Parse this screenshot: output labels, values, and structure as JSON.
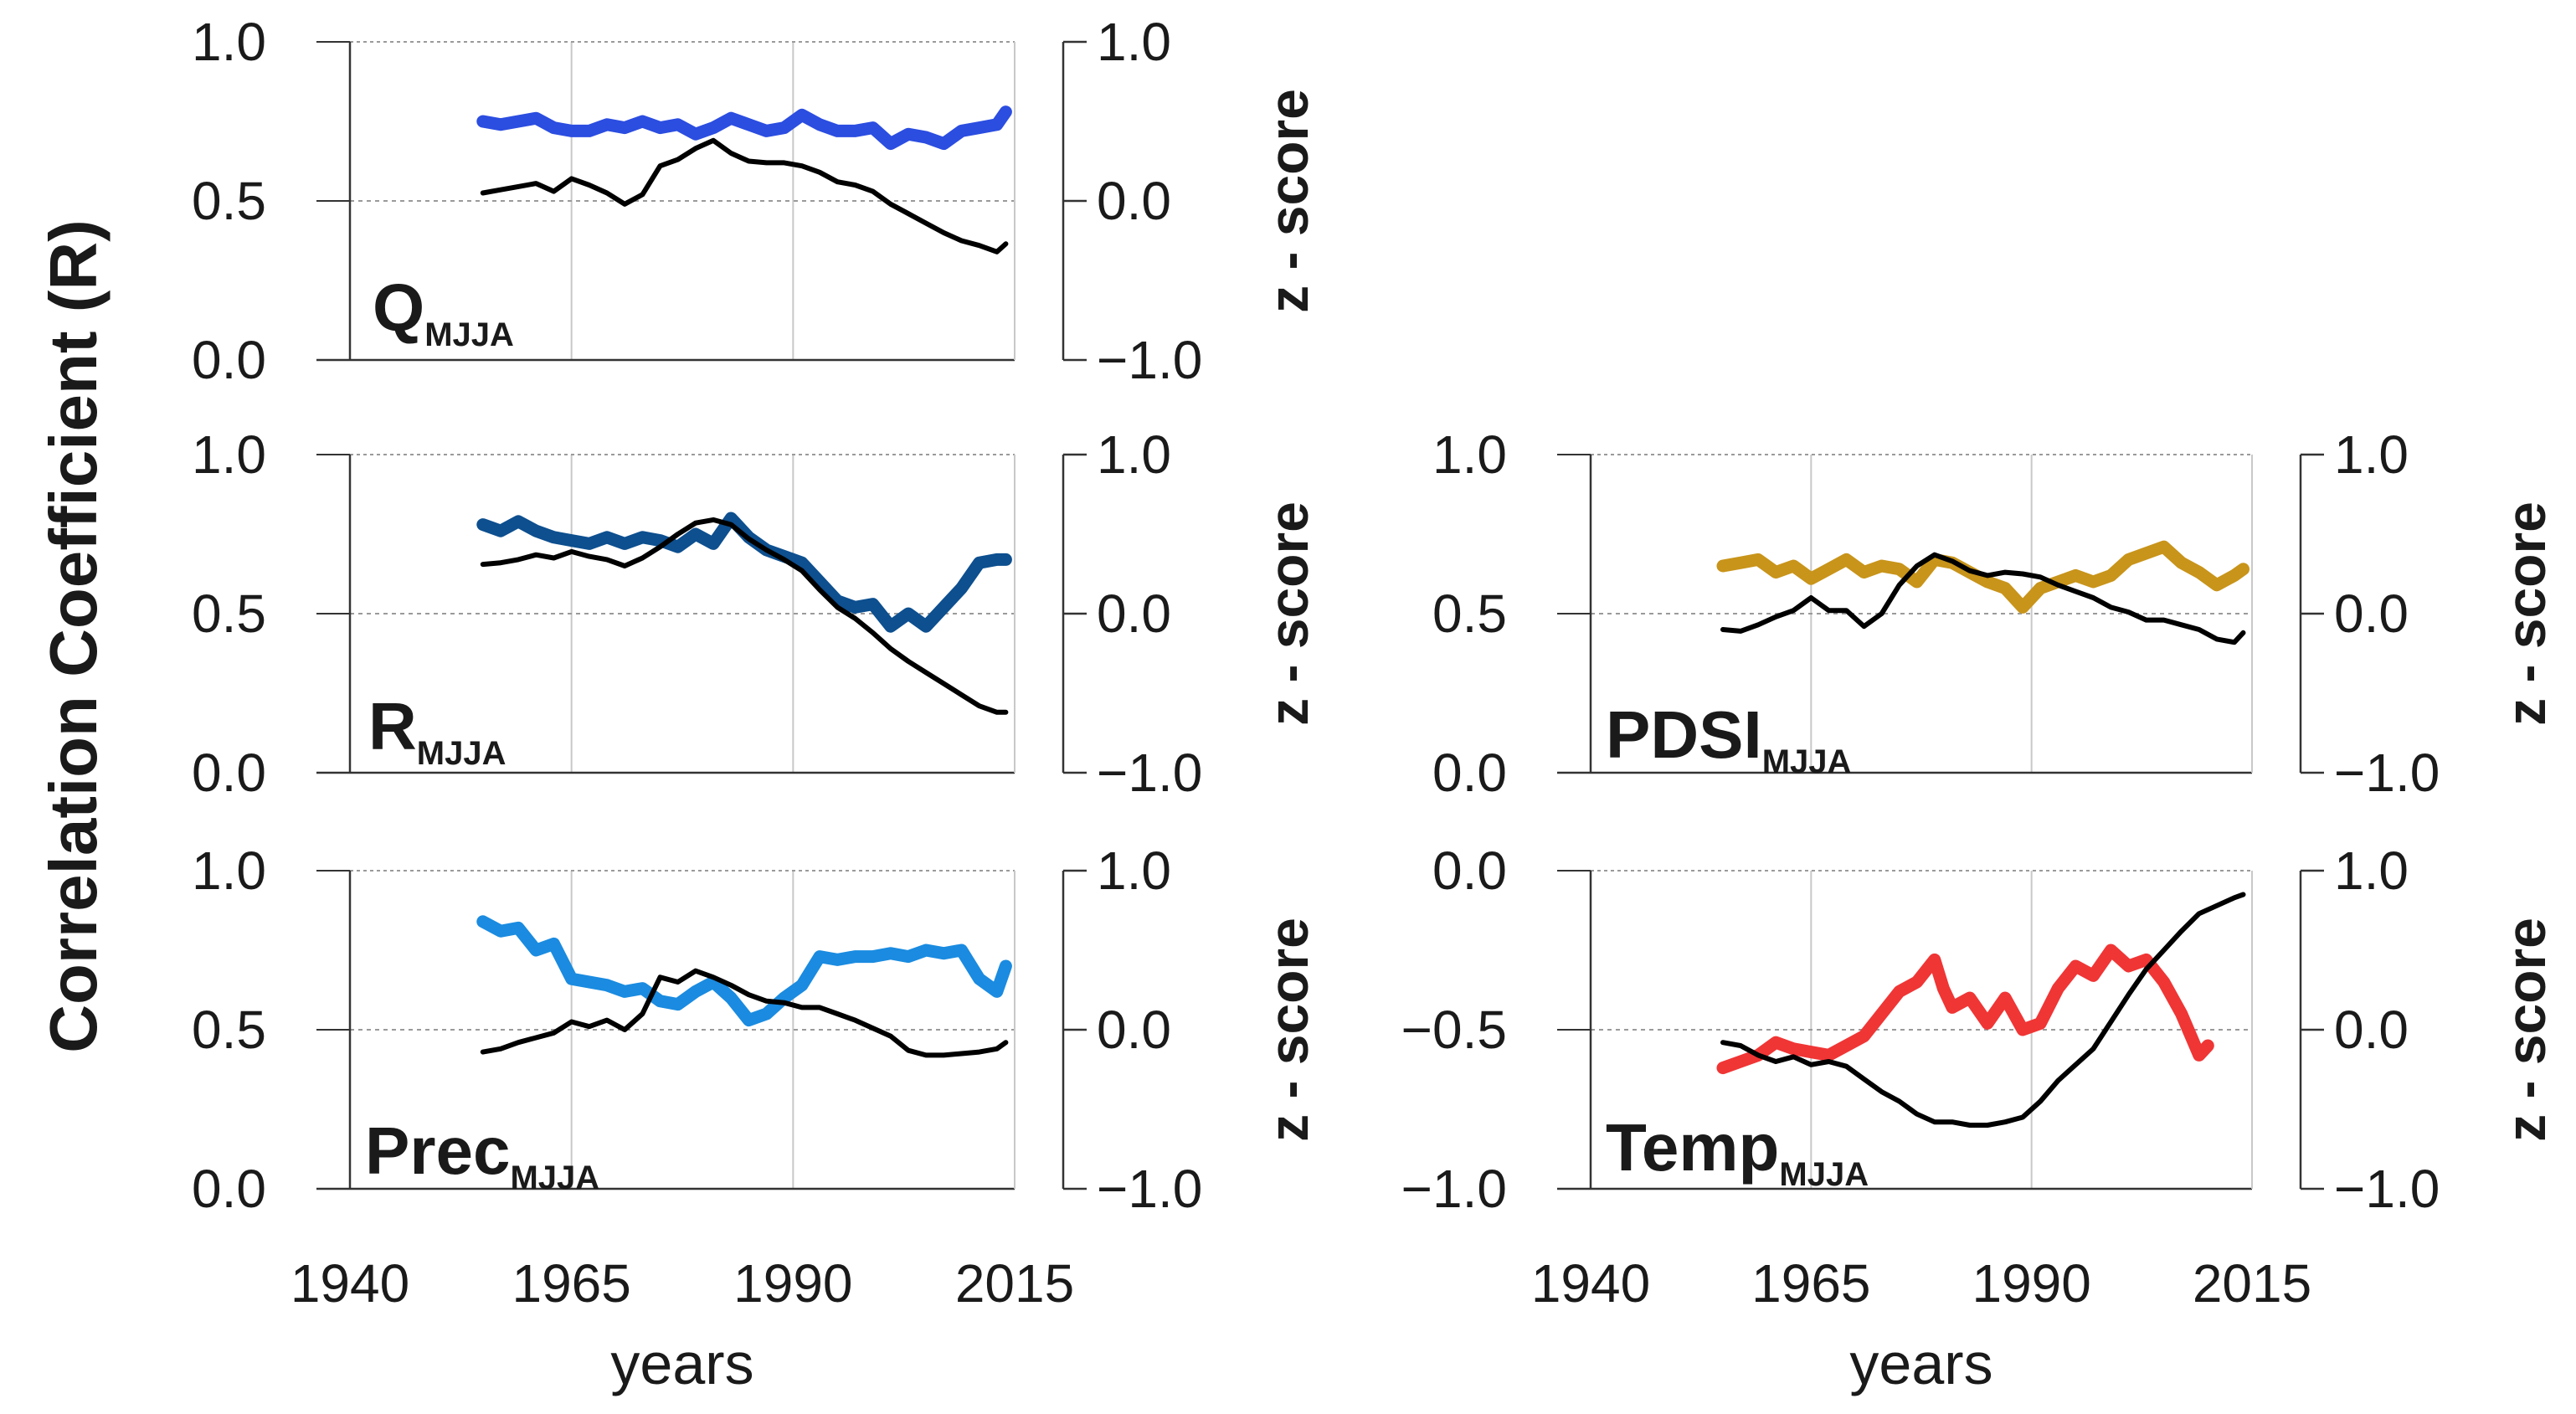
{
  "ylabel": "Correlation Coefficient (R)",
  "colors": {
    "Q": "#2b4de0",
    "R": "#0d4f8f",
    "Prec": "#1a8be0",
    "PDSI": "#c8941a",
    "Temp": "#f03535",
    "zscore": "#000000"
  },
  "chart_data": [
    {
      "type": "line",
      "id": "Q",
      "name": "Q",
      "subscript": "MJJA",
      "xlabel": "",
      "ylim": [
        0,
        1
      ],
      "yticks": [
        "0.0",
        "0.5",
        "1.0"
      ],
      "y2lim": [
        -1,
        1
      ],
      "y2ticks": [
        "−1.0",
        "0.0",
        "1.0"
      ],
      "y2label": "z - score",
      "xticks": [
        1940,
        1965,
        1990,
        2015
      ],
      "xticklabels": [],
      "xlim": [
        1940,
        2015
      ],
      "series": [
        {
          "role": "correlation",
          "color": "#2b4de0",
          "x": [
            1955,
            1957,
            1959,
            1961,
            1963,
            1965,
            1967,
            1969,
            1971,
            1973,
            1975,
            1977,
            1979,
            1981,
            1983,
            1985,
            1987,
            1989,
            1991,
            1993,
            1995,
            1997,
            1999,
            2001,
            2003,
            2005,
            2007,
            2009,
            2011,
            2013,
            2014
          ],
          "y": [
            0.75,
            0.74,
            0.75,
            0.76,
            0.73,
            0.72,
            0.72,
            0.74,
            0.73,
            0.75,
            0.73,
            0.74,
            0.71,
            0.73,
            0.76,
            0.74,
            0.72,
            0.73,
            0.77,
            0.74,
            0.72,
            0.72,
            0.73,
            0.68,
            0.71,
            0.7,
            0.68,
            0.72,
            0.73,
            0.74,
            0.78
          ]
        },
        {
          "role": "z-score",
          "color": "#000000",
          "x": [
            1955,
            1957,
            1959,
            1961,
            1963,
            1965,
            1967,
            1969,
            1971,
            1973,
            1975,
            1977,
            1979,
            1981,
            1983,
            1985,
            1987,
            1989,
            1991,
            1993,
            1995,
            1997,
            1999,
            2001,
            2003,
            2005,
            2007,
            2009,
            2011,
            2013,
            2014
          ],
          "y": [
            0.05,
            0.07,
            0.09,
            0.11,
            0.06,
            0.14,
            0.1,
            0.05,
            -0.02,
            0.04,
            0.22,
            0.26,
            0.33,
            0.38,
            0.3,
            0.25,
            0.24,
            0.24,
            0.22,
            0.18,
            0.12,
            0.1,
            0.06,
            -0.02,
            -0.08,
            -0.14,
            -0.2,
            -0.25,
            -0.28,
            -0.32,
            -0.27
          ]
        }
      ]
    },
    {
      "type": "line",
      "id": "R",
      "name": "R",
      "subscript": "MJJA",
      "xlabel": "",
      "ylim": [
        0,
        1
      ],
      "yticks": [
        "0.0",
        "0.5",
        "1.0"
      ],
      "y2lim": [
        -1,
        1
      ],
      "y2ticks": [
        "−1.0",
        "0.0",
        "1.0"
      ],
      "y2label": "z - score",
      "xticks": [
        1940,
        1965,
        1990,
        2015
      ],
      "xticklabels": [],
      "xlim": [
        1940,
        2015
      ],
      "series": [
        {
          "role": "correlation",
          "color": "#0d4f8f",
          "x": [
            1955,
            1957,
            1959,
            1961,
            1963,
            1965,
            1967,
            1969,
            1971,
            1973,
            1975,
            1977,
            1979,
            1981,
            1983,
            1985,
            1987,
            1989,
            1991,
            1993,
            1995,
            1997,
            1999,
            2001,
            2003,
            2005,
            2007,
            2009,
            2011,
            2013,
            2014
          ],
          "y": [
            0.78,
            0.76,
            0.79,
            0.76,
            0.74,
            0.73,
            0.72,
            0.74,
            0.72,
            0.74,
            0.73,
            0.71,
            0.75,
            0.72,
            0.8,
            0.74,
            0.7,
            0.68,
            0.66,
            0.6,
            0.54,
            0.52,
            0.53,
            0.46,
            0.5,
            0.46,
            0.52,
            0.58,
            0.66,
            0.67,
            0.67
          ]
        },
        {
          "role": "z-score",
          "color": "#000000",
          "x": [
            1955,
            1957,
            1959,
            1961,
            1963,
            1965,
            1967,
            1969,
            1971,
            1973,
            1975,
            1977,
            1979,
            1981,
            1983,
            1985,
            1987,
            1989,
            1991,
            1993,
            1995,
            1997,
            1999,
            2001,
            2003,
            2005,
            2007,
            2009,
            2011,
            2013,
            2014
          ],
          "y": [
            0.31,
            0.32,
            0.34,
            0.37,
            0.35,
            0.39,
            0.36,
            0.34,
            0.3,
            0.35,
            0.42,
            0.5,
            0.57,
            0.59,
            0.56,
            0.47,
            0.4,
            0.34,
            0.27,
            0.15,
            0.04,
            -0.03,
            -0.12,
            -0.22,
            -0.3,
            -0.37,
            -0.44,
            -0.51,
            -0.58,
            -0.62,
            -0.62
          ]
        }
      ]
    },
    {
      "type": "line",
      "id": "Prec",
      "name": "Prec",
      "subscript": "MJJA",
      "xlabel": "years",
      "ylim": [
        0,
        1
      ],
      "yticks": [
        "0.0",
        "0.5",
        "1.0"
      ],
      "y2lim": [
        -1,
        1
      ],
      "y2ticks": [
        "−1.0",
        "0.0",
        "1.0"
      ],
      "y2label": "z - score",
      "xticks": [
        1940,
        1965,
        1990,
        2015
      ],
      "xticklabels": [
        "1940",
        "1965",
        "1990",
        "2015"
      ],
      "xlim": [
        1940,
        2015
      ],
      "series": [
        {
          "role": "correlation",
          "color": "#1a8be0",
          "x": [
            1955,
            1957,
            1959,
            1961,
            1963,
            1965,
            1967,
            1969,
            1971,
            1973,
            1975,
            1977,
            1979,
            1981,
            1983,
            1985,
            1987,
            1989,
            1991,
            1993,
            1995,
            1997,
            1999,
            2001,
            2003,
            2005,
            2007,
            2009,
            2011,
            2013,
            2014
          ],
          "y": [
            0.84,
            0.81,
            0.82,
            0.75,
            0.77,
            0.66,
            0.65,
            0.64,
            0.62,
            0.63,
            0.59,
            0.58,
            0.62,
            0.65,
            0.6,
            0.53,
            0.55,
            0.6,
            0.64,
            0.73,
            0.72,
            0.73,
            0.73,
            0.74,
            0.73,
            0.75,
            0.74,
            0.75,
            0.66,
            0.62,
            0.7
          ]
        },
        {
          "role": "z-score",
          "color": "#000000",
          "x": [
            1955,
            1957,
            1959,
            1961,
            1963,
            1965,
            1967,
            1969,
            1971,
            1973,
            1975,
            1977,
            1979,
            1981,
            1983,
            1985,
            1987,
            1989,
            1991,
            1993,
            1995,
            1997,
            1999,
            2001,
            2003,
            2005,
            2007,
            2009,
            2011,
            2013,
            2014
          ],
          "y": [
            -0.14,
            -0.12,
            -0.08,
            -0.05,
            -0.02,
            0.05,
            0.02,
            0.06,
            0.0,
            0.1,
            0.33,
            0.3,
            0.37,
            0.33,
            0.28,
            0.22,
            0.18,
            0.17,
            0.14,
            0.14,
            0.1,
            0.06,
            0.01,
            -0.04,
            -0.13,
            -0.16,
            -0.16,
            -0.15,
            -0.14,
            -0.12,
            -0.08
          ]
        }
      ]
    },
    {
      "type": "line",
      "id": "PDSI",
      "name": "PDSI",
      "subscript": "MJJA",
      "xlabel": "",
      "ylim": [
        0,
        1
      ],
      "yticks": [
        "0.0",
        "0.5",
        "1.0"
      ],
      "y2lim": [
        -1,
        1
      ],
      "y2ticks": [
        "−1.0",
        "0.0",
        "1.0"
      ],
      "y2label": "z - score",
      "xticks": [
        1940,
        1965,
        1990,
        2015
      ],
      "xticklabels": [],
      "xlim": [
        1940,
        2015
      ],
      "series": [
        {
          "role": "correlation",
          "color": "#c8941a",
          "x": [
            1955,
            1957,
            1959,
            1961,
            1963,
            1965,
            1967,
            1969,
            1971,
            1973,
            1975,
            1977,
            1979,
            1981,
            1983,
            1985,
            1987,
            1989,
            1991,
            1993,
            1995,
            1997,
            1999,
            2001,
            2003,
            2005,
            2007,
            2009,
            2011,
            2013,
            2014
          ],
          "y": [
            0.65,
            0.66,
            0.67,
            0.63,
            0.65,
            0.61,
            0.64,
            0.67,
            0.63,
            0.65,
            0.64,
            0.6,
            0.67,
            0.66,
            0.63,
            0.6,
            0.58,
            0.52,
            0.58,
            0.6,
            0.62,
            0.6,
            0.62,
            0.67,
            0.69,
            0.71,
            0.66,
            0.63,
            0.59,
            0.62,
            0.64
          ]
        },
        {
          "role": "z-score",
          "color": "#000000",
          "x": [
            1955,
            1957,
            1959,
            1961,
            1963,
            1965,
            1967,
            1969,
            1971,
            1973,
            1975,
            1977,
            1979,
            1981,
            1983,
            1985,
            1987,
            1989,
            1991,
            1993,
            1995,
            1997,
            1999,
            2001,
            2003,
            2005,
            2007,
            2009,
            2011,
            2013,
            2014
          ],
          "y": [
            -0.1,
            -0.11,
            -0.07,
            -0.02,
            0.02,
            0.1,
            0.02,
            0.02,
            -0.08,
            0.0,
            0.18,
            0.3,
            0.37,
            0.33,
            0.27,
            0.24,
            0.26,
            0.25,
            0.23,
            0.18,
            0.14,
            0.1,
            0.04,
            0.01,
            -0.04,
            -0.04,
            -0.07,
            -0.1,
            -0.16,
            -0.18,
            -0.12
          ]
        }
      ]
    },
    {
      "type": "line",
      "id": "Temp",
      "name": "Temp",
      "subscript": "MJJA",
      "xlabel": "years",
      "ylim": [
        -1,
        0
      ],
      "yticks": [
        "−1.0",
        "−0.5",
        "0.0"
      ],
      "y2lim": [
        -1,
        1
      ],
      "y2ticks": [
        "−1.0",
        "0.0",
        "1.0"
      ],
      "y2label": "z - score",
      "xticks": [
        1940,
        1965,
        1990,
        2015
      ],
      "xticklabels": [
        "1940",
        "1965",
        "1990",
        "2015"
      ],
      "xlim": [
        1940,
        2015
      ],
      "series": [
        {
          "role": "correlation",
          "color": "#f03535",
          "x": [
            1955,
            1957,
            1959,
            1961,
            1963,
            1965,
            1967,
            1969,
            1971,
            1973,
            1975,
            1977,
            1979,
            1980,
            1981,
            1983,
            1985,
            1987,
            1989,
            1991,
            1993,
            1995,
            1997,
            1999,
            2001,
            2003,
            2005,
            2007,
            2009,
            2010
          ],
          "y": [
            -0.62,
            -0.6,
            -0.58,
            -0.54,
            -0.56,
            -0.57,
            -0.58,
            -0.55,
            -0.52,
            -0.45,
            -0.38,
            -0.35,
            -0.28,
            -0.37,
            -0.43,
            -0.4,
            -0.48,
            -0.4,
            -0.5,
            -0.48,
            -0.37,
            -0.3,
            -0.33,
            -0.25,
            -0.3,
            -0.28,
            -0.35,
            -0.45,
            -0.58,
            -0.55
          ]
        },
        {
          "role": "z-score",
          "color": "#000000",
          "x": [
            1955,
            1957,
            1959,
            1961,
            1963,
            1965,
            1967,
            1969,
            1971,
            1973,
            1975,
            1977,
            1979,
            1981,
            1983,
            1985,
            1987,
            1989,
            1991,
            1993,
            1995,
            1997,
            1999,
            2001,
            2003,
            2005,
            2007,
            2009,
            2011,
            2013,
            2014
          ],
          "y": [
            -0.08,
            -0.1,
            -0.16,
            -0.2,
            -0.17,
            -0.22,
            -0.2,
            -0.23,
            -0.31,
            -0.39,
            -0.45,
            -0.53,
            -0.58,
            -0.58,
            -0.6,
            -0.6,
            -0.58,
            -0.55,
            -0.45,
            -0.32,
            -0.22,
            -0.12,
            0.05,
            0.22,
            0.38,
            0.5,
            0.62,
            0.73,
            0.78,
            0.83,
            0.85
          ]
        }
      ]
    }
  ]
}
